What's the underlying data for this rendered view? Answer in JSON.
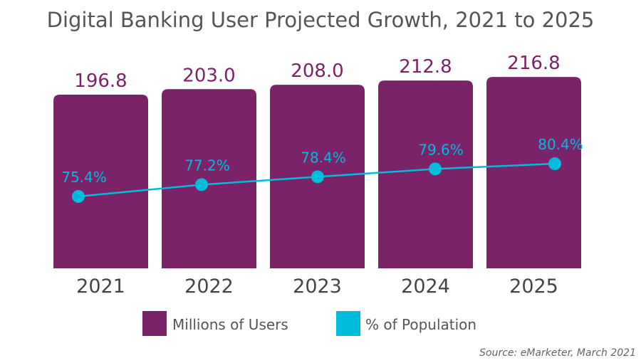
{
  "chart_data": {
    "type": "bar+line",
    "title": "Digital Banking User Projected Growth, 2021 to 2025",
    "categories": [
      "2021",
      "2022",
      "2023",
      "2024",
      "2025"
    ],
    "series": [
      {
        "name": "Millions of Users",
        "type": "bar",
        "values": [
          196.8,
          203.0,
          208.0,
          212.8,
          216.8
        ],
        "labels": [
          "196.8",
          "203.0",
          "208.0",
          "212.8",
          "216.8"
        ],
        "color": "#7A2368"
      },
      {
        "name": "% of Population",
        "type": "line",
        "values": [
          75.4,
          77.2,
          78.4,
          79.6,
          80.4
        ],
        "labels": [
          "75.4%",
          "77.2%",
          "78.4%",
          "79.6%",
          "80.4%"
        ],
        "color": "#00BCDC"
      }
    ],
    "xlabel": "",
    "ylabel": "",
    "grid": false,
    "legend": "bottom",
    "source": "Source: eMarketer, March 2021"
  }
}
